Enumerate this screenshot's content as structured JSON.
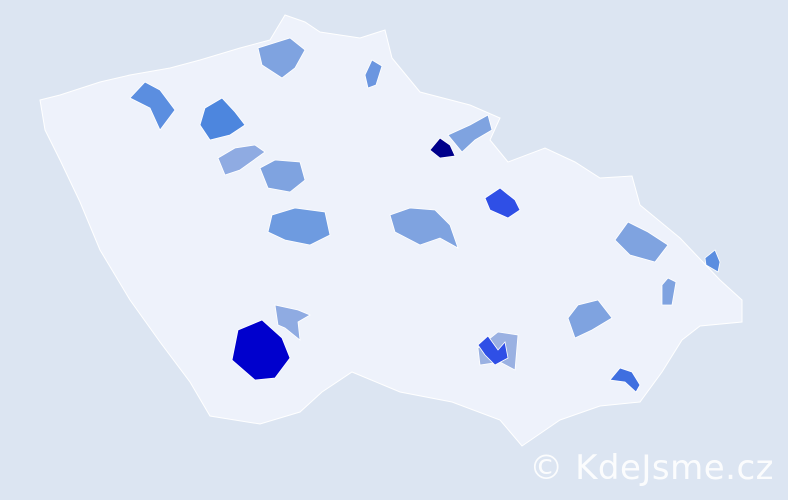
{
  "map": {
    "land_color": "#eef2fb",
    "border_color": "#ffffff",
    "background_color": "#dce5f2",
    "regions": [
      {
        "color": "#7fa3e0"
      },
      {
        "color": "#5b8ee0"
      },
      {
        "color": "#4d86de"
      },
      {
        "color": "#6b96e0"
      },
      {
        "color": "#8fabe2"
      },
      {
        "color": "#7fa3e0"
      },
      {
        "color": "#6e9be0"
      },
      {
        "color": "#7fa3e0"
      },
      {
        "color": "#00008b"
      },
      {
        "color": "#7fa3e0"
      },
      {
        "color": "#2f4fe6"
      },
      {
        "color": "#7fa3e0"
      },
      {
        "color": "#8fabe2"
      },
      {
        "color": "#0000cd"
      },
      {
        "color": "#9ab1e2"
      },
      {
        "color": "#2f4fe6"
      },
      {
        "color": "#7fa3e0"
      },
      {
        "color": "#7fa3e0"
      },
      {
        "color": "#5b8ee0"
      },
      {
        "color": "#3f6fe0"
      },
      {
        "color": "#00008b"
      }
    ]
  },
  "watermark": "© KdeJsme.cz"
}
